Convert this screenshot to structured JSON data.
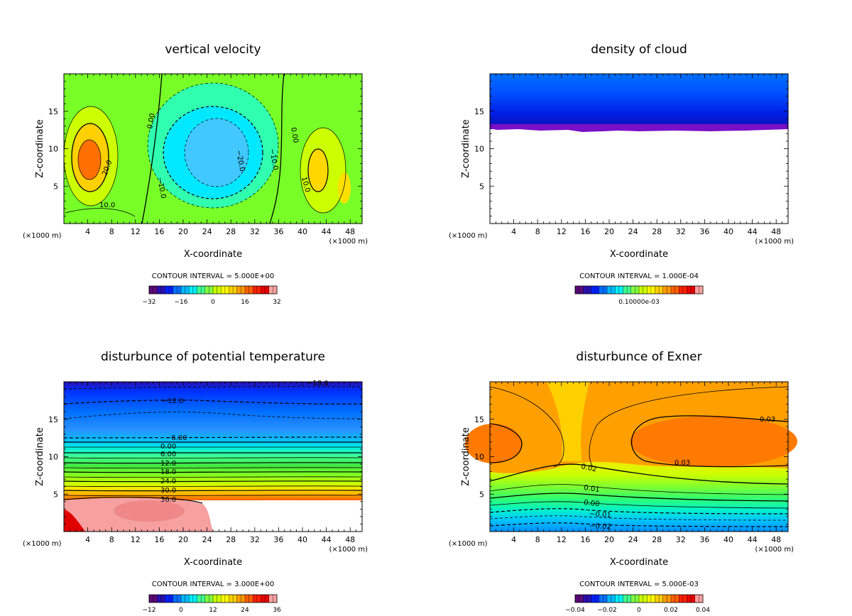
{
  "colors": {
    "rainbow": [
      "#5a0a78",
      "#2a10b0",
      "#0020ff",
      "#0070ff",
      "#00b8ff",
      "#00f0ff",
      "#40ff90",
      "#80ff40",
      "#ccff00",
      "#ffff00",
      "#ffd000",
      "#ff9a00",
      "#ff6000",
      "#ff2000",
      "#e80000",
      "#ffa0a0"
    ]
  },
  "chart_data": [
    {
      "type": "heatmap",
      "title": "vertical velocity",
      "xlabel": "X-coordinate",
      "ylabel": "Z-coordinate",
      "x_unit": "(×1000 m)",
      "xticks": [
        "4",
        "8",
        "12",
        "16",
        "20",
        "24",
        "28",
        "32",
        "36",
        "40",
        "44",
        "48"
      ],
      "yticks": [
        "5",
        "10",
        "15"
      ],
      "xlim": [
        0,
        50
      ],
      "ylim": [
        0,
        20
      ],
      "contour_interval": "CONTOUR INTERVAL = 5.000E+00",
      "colorbar_labels": [
        "−32",
        "−16",
        "0",
        "16",
        "32"
      ],
      "contour_labels": [
        "20.0",
        "10.0",
        "0.00",
        "0.00",
        "−10.0",
        "−20.0",
        "−10.0",
        "10.0"
      ]
    },
    {
      "type": "heatmap",
      "title": "density of cloud",
      "xlabel": "X-coordinate",
      "ylabel": "Z-coordinate",
      "x_unit": "(×1000 m)",
      "xticks": [
        "4",
        "8",
        "12",
        "16",
        "20",
        "24",
        "28",
        "32",
        "36",
        "40",
        "44",
        "48"
      ],
      "yticks": [
        "5",
        "10",
        "15"
      ],
      "xlim": [
        0,
        50
      ],
      "ylim": [
        0,
        20
      ],
      "contour_interval": "CONTOUR INTERVAL = 1.000E-04",
      "colorbar_labels": [
        "0.10000e-03"
      ],
      "cloud_base_z": 12.5
    },
    {
      "type": "heatmap",
      "title": "disturbunce of potential temperature",
      "xlabel": "X-coordinate",
      "ylabel": "Z-coordinate",
      "x_unit": "(×1000 m)",
      "xticks": [
        "4",
        "8",
        "12",
        "16",
        "20",
        "24",
        "28",
        "32",
        "36",
        "40",
        "44",
        "48"
      ],
      "yticks": [
        "5",
        "10",
        "15"
      ],
      "xlim": [
        0,
        50
      ],
      "ylim": [
        0,
        20
      ],
      "contour_interval": "CONTOUR INTERVAL = 3.000E+00",
      "colorbar_labels": [
        "−12",
        "0",
        "12",
        "24",
        "36"
      ],
      "contour_labels": [
        "−18.0",
        "−12.0",
        "−6.00",
        "0.00",
        "6.00",
        "12.0",
        "18.0",
        "24.0",
        "30.0",
        "36.0"
      ]
    },
    {
      "type": "heatmap",
      "title": "disturbunce of Exner",
      "xlabel": "X-coordinate",
      "ylabel": "Z-coordinate",
      "x_unit": "(×1000 m)",
      "xticks": [
        "4",
        "8",
        "12",
        "16",
        "20",
        "24",
        "28",
        "32",
        "36",
        "40",
        "44",
        "48"
      ],
      "yticks": [
        "5",
        "10",
        "15"
      ],
      "xlim": [
        0,
        50
      ],
      "ylim": [
        0,
        20
      ],
      "contour_interval": "CONTOUR INTERVAL = 5.000E-03",
      "colorbar_labels": [
        "−0.04",
        "−0.02",
        "0",
        "0.02",
        "0.04"
      ],
      "contour_labels": [
        "0.03",
        "0.03",
        "0.02",
        "0.01",
        "0.00",
        "−0.01",
        "−0.02"
      ]
    }
  ]
}
